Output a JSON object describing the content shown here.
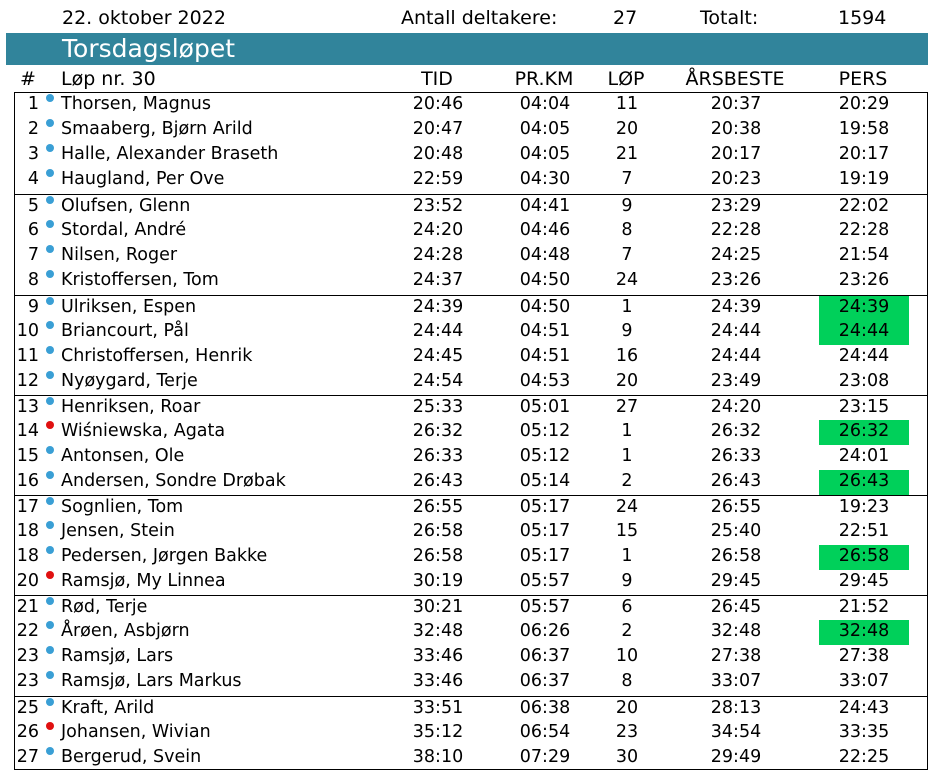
{
  "header": {
    "date": "22. oktober 2022",
    "participants_label": "Antall deltakere:",
    "participants": "27",
    "total_label": "Totalt:",
    "total": "1594"
  },
  "title": "Torsdagsløpet",
  "columns": {
    "num": "#",
    "race": "Løp nr. 30",
    "tid": "TID",
    "prkm": "PR.KM",
    "lop": "LØP",
    "arsbeste": "ÅRSBESTE",
    "pers": "PERS"
  },
  "colors": {
    "title_bg": "#31849b",
    "dot_male": "#3a9fd5",
    "dot_female": "#e01010",
    "highlight": "#00d05a"
  },
  "rows": [
    {
      "num": "1",
      "name": "Thorsen, Magnus",
      "tid": "20:46",
      "prkm": "04:04",
      "lop": "11",
      "ars": "20:37",
      "pers": "20:29",
      "dot": "male",
      "hl": false
    },
    {
      "num": "2",
      "name": "Smaaberg, Bjørn Arild",
      "tid": "20:47",
      "prkm": "04:05",
      "lop": "20",
      "ars": "20:38",
      "pers": "19:58",
      "dot": "male",
      "hl": false
    },
    {
      "num": "3",
      "name": "Halle, Alexander Braseth",
      "tid": "20:48",
      "prkm": "04:05",
      "lop": "21",
      "ars": "20:17",
      "pers": "20:17",
      "dot": "male",
      "hl": false
    },
    {
      "num": "4",
      "name": "Haugland, Per Ove",
      "tid": "22:59",
      "prkm": "04:30",
      "lop": "7",
      "ars": "20:23",
      "pers": "19:19",
      "dot": "male",
      "hl": false
    },
    {
      "num": "5",
      "name": "Olufsen, Glenn",
      "tid": "23:52",
      "prkm": "04:41",
      "lop": "9",
      "ars": "23:29",
      "pers": "22:02",
      "dot": "male",
      "hl": false
    },
    {
      "num": "6",
      "name": "Stordal, André",
      "tid": "24:20",
      "prkm": "04:46",
      "lop": "8",
      "ars": "22:28",
      "pers": "22:28",
      "dot": "male",
      "hl": false
    },
    {
      "num": "7",
      "name": "Nilsen, Roger",
      "tid": "24:28",
      "prkm": "04:48",
      "lop": "7",
      "ars": "24:25",
      "pers": "21:54",
      "dot": "male",
      "hl": false
    },
    {
      "num": "8",
      "name": "Kristoffersen, Tom",
      "tid": "24:37",
      "prkm": "04:50",
      "lop": "24",
      "ars": "23:26",
      "pers": "23:26",
      "dot": "male",
      "hl": false
    },
    {
      "num": "9",
      "name": "Ulriksen, Espen",
      "tid": "24:39",
      "prkm": "04:50",
      "lop": "1",
      "ars": "24:39",
      "pers": "24:39",
      "dot": "male",
      "hl": true
    },
    {
      "num": "10",
      "name": "Briancourt, Pål",
      "tid": "24:44",
      "prkm": "04:51",
      "lop": "9",
      "ars": "24:44",
      "pers": "24:44",
      "dot": "male",
      "hl": true
    },
    {
      "num": "11",
      "name": "Christoffersen, Henrik",
      "tid": "24:45",
      "prkm": "04:51",
      "lop": "16",
      "ars": "24:44",
      "pers": "24:44",
      "dot": "male",
      "hl": false
    },
    {
      "num": "12",
      "name": "Nyøygard, Terje",
      "tid": "24:54",
      "prkm": "04:53",
      "lop": "20",
      "ars": "23:49",
      "pers": "23:08",
      "dot": "male",
      "hl": false
    },
    {
      "num": "13",
      "name": "Henriksen, Roar",
      "tid": "25:33",
      "prkm": "05:01",
      "lop": "27",
      "ars": "24:20",
      "pers": "23:15",
      "dot": "male",
      "hl": false
    },
    {
      "num": "14",
      "name": "Wiśniewska, Agata",
      "tid": "26:32",
      "prkm": "05:12",
      "lop": "1",
      "ars": "26:32",
      "pers": "26:32",
      "dot": "female",
      "hl": true
    },
    {
      "num": "15",
      "name": "Antonsen, Ole",
      "tid": "26:33",
      "prkm": "05:12",
      "lop": "1",
      "ars": "26:33",
      "pers": "24:01",
      "dot": "male",
      "hl": false
    },
    {
      "num": "16",
      "name": "Andersen, Sondre Drøbak",
      "tid": "26:43",
      "prkm": "05:14",
      "lop": "2",
      "ars": "26:43",
      "pers": "26:43",
      "dot": "male",
      "hl": true
    },
    {
      "num": "17",
      "name": "Sognlien, Tom",
      "tid": "26:55",
      "prkm": "05:17",
      "lop": "24",
      "ars": "26:55",
      "pers": "19:23",
      "dot": "male",
      "hl": false
    },
    {
      "num": "18",
      "name": "Jensen, Stein",
      "tid": "26:58",
      "prkm": "05:17",
      "lop": "15",
      "ars": "25:40",
      "pers": "22:51",
      "dot": "male",
      "hl": false
    },
    {
      "num": "18",
      "name": "Pedersen, Jørgen Bakke",
      "tid": "26:58",
      "prkm": "05:17",
      "lop": "1",
      "ars": "26:58",
      "pers": "26:58",
      "dot": "male",
      "hl": true
    },
    {
      "num": "20",
      "name": "Ramsjø, My Linnea",
      "tid": "30:19",
      "prkm": "05:57",
      "lop": "9",
      "ars": "29:45",
      "pers": "29:45",
      "dot": "female",
      "hl": false
    },
    {
      "num": "21",
      "name": "Rød, Terje",
      "tid": "30:21",
      "prkm": "05:57",
      "lop": "6",
      "ars": "26:45",
      "pers": "21:52",
      "dot": "male",
      "hl": false
    },
    {
      "num": "22",
      "name": "Årøen, Asbjørn",
      "tid": "32:48",
      "prkm": "06:26",
      "lop": "2",
      "ars": "32:48",
      "pers": "32:48",
      "dot": "male",
      "hl": true
    },
    {
      "num": "23",
      "name": "Ramsjø, Lars",
      "tid": "33:46",
      "prkm": "06:37",
      "lop": "10",
      "ars": "27:38",
      "pers": "27:38",
      "dot": "male",
      "hl": false
    },
    {
      "num": "23",
      "name": "Ramsjø, Lars Markus",
      "tid": "33:46",
      "prkm": "06:37",
      "lop": "8",
      "ars": "33:07",
      "pers": "33:07",
      "dot": "male",
      "hl": false
    },
    {
      "num": "25",
      "name": "Kraft, Arild",
      "tid": "33:51",
      "prkm": "06:38",
      "lop": "20",
      "ars": "28:13",
      "pers": "24:43",
      "dot": "male",
      "hl": false
    },
    {
      "num": "26",
      "name": "Johansen, Wivian",
      "tid": "35:12",
      "prkm": "06:54",
      "lop": "23",
      "ars": "34:54",
      "pers": "33:35",
      "dot": "female",
      "hl": false
    },
    {
      "num": "27",
      "name": "Bergerud, Svein",
      "tid": "38:10",
      "prkm": "07:29",
      "lop": "30",
      "ars": "29:49",
      "pers": "22:25",
      "dot": "male",
      "hl": false
    }
  ]
}
